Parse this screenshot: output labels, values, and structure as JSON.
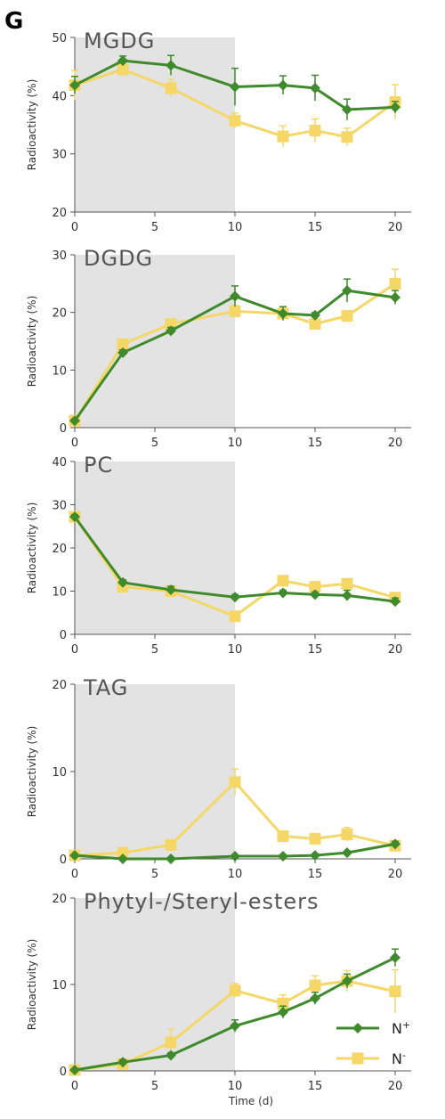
{
  "panel_label": "G",
  "colors": {
    "n_plus": "#3e8a2c",
    "n_minus": "#f5d768",
    "shade": "#e3e3e3",
    "axis": "#555555"
  },
  "chart_data": [
    {
      "type": "line",
      "title": "MGDG",
      "ylabel": "Radioactivity  (%)",
      "xlabel": "",
      "ylim": [
        20,
        50
      ],
      "yticks": [
        20,
        30,
        40,
        50
      ],
      "xlim": [
        0,
        21
      ],
      "xticks": [
        0,
        5,
        10,
        15,
        20
      ],
      "shaded_x": [
        0,
        10
      ],
      "x": [
        0,
        3,
        6,
        10,
        13,
        15,
        17,
        20
      ],
      "series": [
        {
          "name": "N+",
          "values": [
            41.8,
            46.0,
            45.2,
            41.5,
            41.8,
            41.3,
            37.6,
            38.0
          ],
          "errors": [
            1.5,
            0.8,
            1.7,
            3.2,
            1.6,
            2.2,
            1.8,
            1.0
          ]
        },
        {
          "name": "N-",
          "values": [
            41.8,
            44.5,
            41.3,
            35.7,
            33.0,
            34.0,
            32.9,
            38.9
          ],
          "errors": [
            2.5,
            1.2,
            1.5,
            1.3,
            1.8,
            2.0,
            1.5,
            3.0
          ]
        }
      ]
    },
    {
      "type": "line",
      "title": "DGDG",
      "ylabel": "Radioactivity  (%)",
      "xlabel": "",
      "ylim": [
        0,
        30
      ],
      "yticks": [
        0,
        10,
        20,
        30
      ],
      "xlim": [
        0,
        21
      ],
      "xticks": [
        0,
        5,
        10,
        15,
        20
      ],
      "shaded_x": [
        0,
        10
      ],
      "x": [
        0,
        3,
        6,
        10,
        13,
        15,
        17,
        20
      ],
      "series": [
        {
          "name": "N+",
          "values": [
            1.2,
            13.0,
            16.8,
            22.8,
            19.8,
            19.5,
            23.8,
            22.6
          ],
          "errors": [
            0.3,
            0.5,
            0.6,
            1.8,
            1.2,
            0.5,
            2.0,
            1.2
          ]
        },
        {
          "name": "N-",
          "values": [
            1.2,
            14.5,
            18.0,
            20.2,
            19.8,
            18.0,
            19.4,
            25.0
          ],
          "errors": [
            0.3,
            0.5,
            0.5,
            1.0,
            1.0,
            0.8,
            0.7,
            2.5
          ]
        }
      ]
    },
    {
      "type": "line",
      "title": "PC",
      "ylabel": "Radioactivity  (%)",
      "xlabel": "",
      "ylim": [
        0,
        40
      ],
      "yticks": [
        0,
        10,
        20,
        30,
        40
      ],
      "xlim": [
        0,
        21
      ],
      "xticks": [
        0,
        5,
        10,
        15,
        20
      ],
      "shaded_x": [
        0,
        10
      ],
      "x": [
        0,
        3,
        6,
        10,
        13,
        15,
        17,
        20
      ],
      "series": [
        {
          "name": "N+",
          "values": [
            27.2,
            12.0,
            10.3,
            8.6,
            9.6,
            9.2,
            9.0,
            7.6
          ],
          "errors": [
            0.5,
            0.6,
            0.8,
            0.6,
            0.6,
            0.6,
            1.2,
            0.8
          ]
        },
        {
          "name": "N-",
          "values": [
            27.2,
            11.0,
            10.0,
            4.2,
            12.4,
            11.0,
            11.7,
            8.5
          ],
          "errors": [
            0.5,
            0.8,
            0.8,
            1.0,
            0.8,
            1.0,
            1.0,
            1.0
          ]
        }
      ]
    },
    {
      "type": "line",
      "title": "TAG",
      "ylabel": "Radioactivity  (%)",
      "xlabel": "",
      "ylim": [
        0,
        20
      ],
      "yticks": [
        0,
        10,
        20
      ],
      "xlim": [
        0,
        21
      ],
      "xticks": [
        0,
        5,
        10,
        15,
        20
      ],
      "shaded_x": [
        0,
        10
      ],
      "x": [
        0,
        3,
        6,
        10,
        13,
        15,
        17,
        20
      ],
      "series": [
        {
          "name": "N+",
          "values": [
            0.4,
            0.0,
            0.0,
            0.3,
            0.3,
            0.4,
            0.7,
            1.7
          ],
          "errors": [
            0.1,
            0.1,
            0.1,
            0.1,
            0.1,
            0.1,
            0.2,
            0.3
          ]
        },
        {
          "name": "N-",
          "values": [
            0.4,
            0.7,
            1.6,
            8.8,
            2.6,
            2.3,
            2.8,
            1.5
          ],
          "errors": [
            0.2,
            0.3,
            0.4,
            1.5,
            0.5,
            0.6,
            0.8,
            0.5
          ]
        }
      ]
    },
    {
      "type": "line",
      "title": "Phytyl-/Steryl-esters",
      "ylabel": "Radioactivity  (%)",
      "xlabel": "Time (d)",
      "ylim": [
        0,
        20
      ],
      "yticks": [
        0,
        10,
        20
      ],
      "xlim": [
        0,
        21
      ],
      "xticks": [
        0,
        5,
        10,
        15,
        20
      ],
      "shaded_x": [
        0,
        10
      ],
      "x": [
        0,
        3,
        6,
        10,
        13,
        15,
        17,
        20
      ],
      "series": [
        {
          "name": "N+",
          "values": [
            0.1,
            1.0,
            1.8,
            5.2,
            6.8,
            8.4,
            10.4,
            13.1
          ],
          "errors": [
            0.1,
            0.3,
            0.3,
            0.7,
            0.7,
            0.7,
            0.8,
            1.0
          ]
        },
        {
          "name": "N-",
          "values": [
            0.1,
            0.8,
            3.3,
            9.3,
            7.8,
            9.9,
            10.4,
            9.2
          ],
          "errors": [
            0.2,
            0.4,
            1.5,
            0.8,
            1.0,
            1.1,
            1.2,
            2.5
          ]
        }
      ]
    }
  ],
  "legend": {
    "placement": "bottom-right",
    "items": [
      {
        "base": "N",
        "sup": "+"
      },
      {
        "base": "N",
        "sup": "-"
      }
    ]
  }
}
